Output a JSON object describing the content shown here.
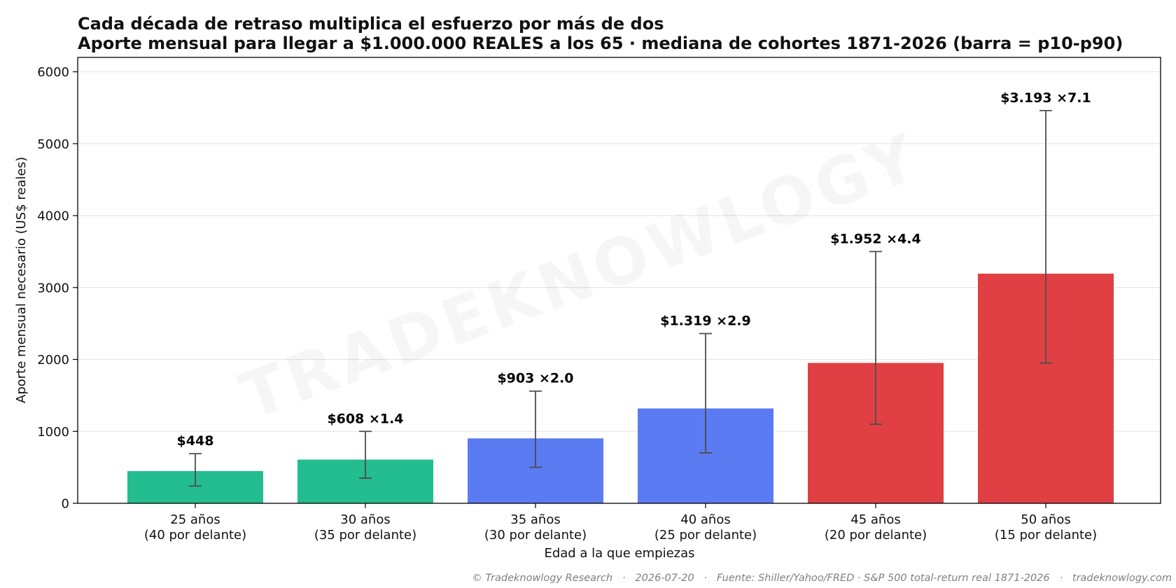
{
  "chart_data": {
    "type": "bar",
    "title": "Cada década de retraso multiplica el esfuerzo por más de dos",
    "subtitle": "Aporte mensual para llegar a $1.000.000 REALES a los 65 · mediana de cohortes 1871-2026 (barra = p10-p90)",
    "xlabel": "Edad a la que empiezas",
    "ylabel": "Aporte mensual necesario (US$ reales)",
    "ylim": [
      0,
      6200
    ],
    "yticks": [
      0,
      1000,
      2000,
      3000,
      4000,
      5000,
      6000
    ],
    "grid": true,
    "categories": [
      {
        "line1": "25 años",
        "line2": "(40 por delante)"
      },
      {
        "line1": "30 años",
        "line2": "(35 por delante)"
      },
      {
        "line1": "35 años",
        "line2": "(30 por delante)"
      },
      {
        "line1": "40 años",
        "line2": "(25 por delante)"
      },
      {
        "line1": "45 años",
        "line2": "(20 por delante)"
      },
      {
        "line1": "50 años",
        "line2": "(15 por delante)"
      }
    ],
    "values": [
      448,
      608,
      903,
      1319,
      1952,
      3193
    ],
    "p10": [
      240,
      350,
      500,
      700,
      1100,
      1950
    ],
    "p90": [
      690,
      1000,
      1560,
      2360,
      3500,
      5460
    ],
    "data_labels": [
      "$448",
      "$608  ×1.4",
      "$903  ×2.0",
      "$1.319  ×2.9",
      "$1.952  ×4.4",
      "$3.193  ×7.1"
    ],
    "colors": [
      "#23BD8F",
      "#23BD8F",
      "#5B7BF3",
      "#5B7BF3",
      "#E04044",
      "#E04044"
    ]
  },
  "watermark": "TRADEKNOWLOGY",
  "footer": "© Tradeknowlogy Research   ·   2026-07-20   ·   Fuente: Shiller/Yahoo/FRED · S&P 500 total-return real 1871-2026   ·   tradeknowlogy.com"
}
